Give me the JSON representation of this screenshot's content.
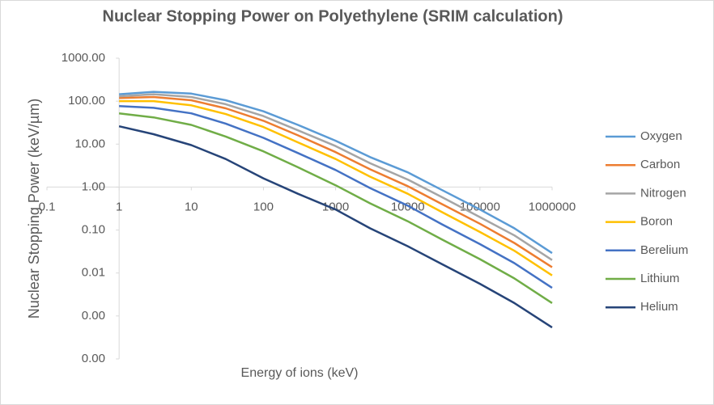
{
  "chart_data": {
    "type": "line",
    "title": "Nuclear Stopping Power on Polyethylene (SRIM calculation)",
    "x_label": "Energy of ions (keV)",
    "y_label": "Nuclear Stopping Power (keV/µm)",
    "x_scale": "log",
    "y_scale": "log",
    "xlim": [
      0.1,
      1000000
    ],
    "ylim": [
      0.0001,
      1000
    ],
    "xticks": [
      0.1,
      1,
      10,
      100,
      1000,
      10000,
      100000,
      1000000
    ],
    "yticks": [
      {
        "value": 1000,
        "label": "1000.00"
      },
      {
        "value": 100,
        "label": "100.00"
      },
      {
        "value": 10,
        "label": "10.00"
      },
      {
        "value": 1,
        "label": "1.00"
      },
      {
        "value": 0.1,
        "label": "0.10"
      },
      {
        "value": 0.01,
        "label": "0.01"
      },
      {
        "value": 0.001,
        "label": "0.00"
      },
      {
        "value": 0.0001,
        "label": "0.00"
      }
    ],
    "legend": "right",
    "x": [
      1,
      3,
      10,
      30,
      100,
      300,
      1000,
      3000,
      10000,
      30000,
      100000,
      300000,
      1000000
    ],
    "series": [
      {
        "name": "Oxygen",
        "color": "#5b9bd5",
        "values": [
          145,
          165,
          150,
          105,
          58,
          28,
          12,
          5,
          2.2,
          0.85,
          0.3,
          0.11,
          0.029
        ]
      },
      {
        "name": "Carbon",
        "color": "#ed7d31",
        "values": [
          118,
          125,
          105,
          68,
          35,
          16,
          6.5,
          2.6,
          1.05,
          0.4,
          0.14,
          0.05,
          0.0136
        ]
      },
      {
        "name": "Nitrogen",
        "color": "#a5a5a5",
        "values": [
          130,
          145,
          125,
          85,
          45,
          21,
          9,
          3.6,
          1.5,
          0.58,
          0.2,
          0.075,
          0.02
        ]
      },
      {
        "name": "Boron",
        "color": "#ffc000",
        "values": [
          100,
          100,
          80,
          50,
          25,
          11,
          4.5,
          1.75,
          0.7,
          0.26,
          0.09,
          0.033,
          0.0088
        ]
      },
      {
        "name": "Berelium",
        "color": "#4472c4",
        "values": [
          77,
          70,
          52,
          30,
          14,
          6.2,
          2.5,
          0.95,
          0.37,
          0.135,
          0.047,
          0.017,
          0.0045
        ]
      },
      {
        "name": "Lithium",
        "color": "#70ad47",
        "values": [
          52,
          42,
          28,
          15,
          6.8,
          2.9,
          1.1,
          0.42,
          0.16,
          0.06,
          0.021,
          0.0075,
          0.002
        ]
      },
      {
        "name": "Helium",
        "color": "#264478",
        "values": [
          26,
          17,
          9.5,
          4.5,
          1.6,
          0.7,
          0.3,
          0.11,
          0.042,
          0.016,
          0.0056,
          0.002,
          0.00054
        ]
      }
    ]
  }
}
